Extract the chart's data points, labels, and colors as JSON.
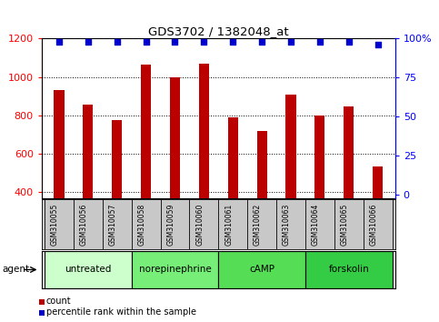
{
  "title": "GDS3702 / 1382048_at",
  "samples": [
    "GSM310055",
    "GSM310056",
    "GSM310057",
    "GSM310058",
    "GSM310059",
    "GSM310060",
    "GSM310061",
    "GSM310062",
    "GSM310063",
    "GSM310064",
    "GSM310065",
    "GSM310066"
  ],
  "counts": [
    930,
    855,
    778,
    1065,
    1000,
    1068,
    790,
    718,
    910,
    800,
    848,
    535
  ],
  "percentiles": [
    98,
    98,
    98,
    98,
    98,
    98,
    98,
    98,
    98,
    98,
    98,
    96
  ],
  "bar_color": "#bb0000",
  "dot_color": "#0000cc",
  "ylim_left": [
    370,
    1200
  ],
  "ylim_right": [
    -2,
    100
  ],
  "yticks_left": [
    400,
    600,
    800,
    1000,
    1200
  ],
  "yticks_right": [
    0,
    25,
    50,
    75,
    100
  ],
  "groups": [
    {
      "label": "untreated",
      "start": 0,
      "end": 3
    },
    {
      "label": "norepinephrine",
      "start": 3,
      "end": 6
    },
    {
      "label": "cAMP",
      "start": 6,
      "end": 9
    },
    {
      "label": "forskolin",
      "start": 9,
      "end": 12
    }
  ],
  "group_colors": [
    "#ccffcc",
    "#77ee77",
    "#55dd55",
    "#33cc44"
  ],
  "agent_label": "agent",
  "legend_count_label": "count",
  "legend_pct_label": "percentile rank within the sample",
  "background_labels": "#c8c8c8",
  "bar_width": 0.35,
  "dot_size": 18,
  "figsize": [
    4.83,
    3.54
  ],
  "dpi": 100
}
